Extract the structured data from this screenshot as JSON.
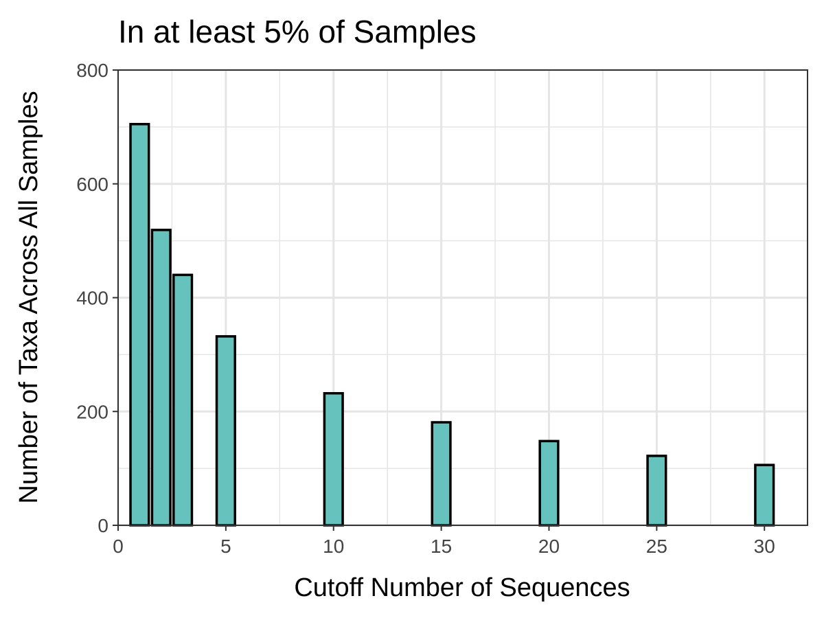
{
  "chart_data": {
    "type": "bar",
    "title": "In at least 5% of Samples",
    "xlabel": "Cutoff Number of Sequences",
    "ylabel": "Number of Taxa Across All Samples",
    "x": [
      1,
      2,
      3,
      5,
      10,
      15,
      20,
      25,
      30
    ],
    "values": [
      705,
      519,
      440,
      332,
      232,
      181,
      148,
      122,
      106
    ],
    "xlim": [
      0,
      32
    ],
    "ylim": [
      0,
      800
    ],
    "xticks": [
      0,
      5,
      10,
      15,
      20,
      25,
      30
    ],
    "yticks": [
      0,
      200,
      400,
      600,
      800
    ],
    "grid": true,
    "legend": "none",
    "colors": {
      "bar_fill": "#66c2bc",
      "bar_stroke": "#000000",
      "grid": "#e5e5e5",
      "panel_border": "#333333"
    }
  }
}
